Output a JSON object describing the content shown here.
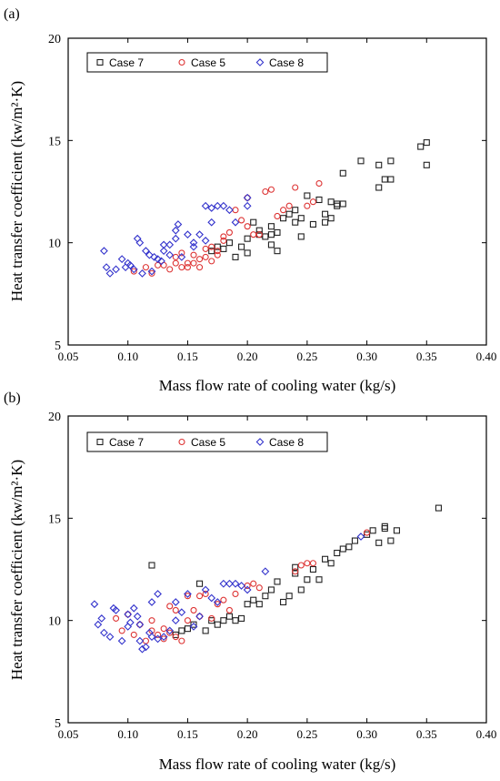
{
  "chart_data": [
    {
      "panel_label": "(a)",
      "type": "scatter",
      "xlabel": "Mass flow rate of cooling water (kg/s)",
      "ylabel": "Heat transfer coefficient (kw/m²·K)",
      "xlim": [
        0.05,
        0.4
      ],
      "ylim": [
        5,
        20
      ],
      "xticks": [
        "0.05",
        "0.10",
        "0.15",
        "0.20",
        "0.25",
        "0.30",
        "0.35",
        "0.40"
      ],
      "yticks": [
        "5",
        "10",
        "15",
        "20"
      ],
      "grid": false,
      "legend_position": "top-left",
      "series": [
        {
          "name": "Case 7",
          "color": "#222222",
          "marker": "square",
          "points": [
            [
              0.17,
              9.6
            ],
            [
              0.175,
              9.8
            ],
            [
              0.18,
              9.7
            ],
            [
              0.185,
              10.0
            ],
            [
              0.19,
              9.3
            ],
            [
              0.195,
              9.8
            ],
            [
              0.2,
              9.5
            ],
            [
              0.2,
              10.2
            ],
            [
              0.205,
              11.0
            ],
            [
              0.21,
              10.4
            ],
            [
              0.21,
              10.6
            ],
            [
              0.215,
              10.3
            ],
            [
              0.22,
              9.9
            ],
            [
              0.22,
              10.4
            ],
            [
              0.22,
              10.8
            ],
            [
              0.225,
              10.5
            ],
            [
              0.225,
              9.6
            ],
            [
              0.23,
              11.2
            ],
            [
              0.235,
              11.4
            ],
            [
              0.24,
              11.0
            ],
            [
              0.24,
              11.6
            ],
            [
              0.245,
              11.2
            ],
            [
              0.245,
              10.3
            ],
            [
              0.25,
              12.3
            ],
            [
              0.255,
              10.9
            ],
            [
              0.26,
              12.1
            ],
            [
              0.265,
              11.4
            ],
            [
              0.265,
              11.0
            ],
            [
              0.27,
              11.2
            ],
            [
              0.275,
              11.9
            ],
            [
              0.27,
              12.0
            ],
            [
              0.275,
              11.8
            ],
            [
              0.28,
              11.9
            ],
            [
              0.28,
              13.4
            ],
            [
              0.295,
              14.0
            ],
            [
              0.31,
              13.8
            ],
            [
              0.31,
              12.7
            ],
            [
              0.315,
              13.1
            ],
            [
              0.32,
              14.0
            ],
            [
              0.32,
              13.1
            ],
            [
              0.345,
              14.7
            ],
            [
              0.35,
              14.9
            ],
            [
              0.35,
              13.8
            ]
          ]
        },
        {
          "name": "Case 5",
          "color": "#dd3333",
          "marker": "circle",
          "points": [
            [
              0.105,
              8.6
            ],
            [
              0.115,
              8.8
            ],
            [
              0.12,
              8.5
            ],
            [
              0.125,
              8.9
            ],
            [
              0.13,
              8.9
            ],
            [
              0.135,
              8.7
            ],
            [
              0.14,
              9.0
            ],
            [
              0.14,
              9.3
            ],
            [
              0.145,
              8.8
            ],
            [
              0.145,
              9.5
            ],
            [
              0.15,
              9.0
            ],
            [
              0.15,
              8.8
            ],
            [
              0.155,
              9.4
            ],
            [
              0.155,
              9.0
            ],
            [
              0.16,
              9.2
            ],
            [
              0.16,
              8.8
            ],
            [
              0.165,
              9.3
            ],
            [
              0.165,
              9.7
            ],
            [
              0.17,
              9.1
            ],
            [
              0.17,
              9.8
            ],
            [
              0.175,
              9.6
            ],
            [
              0.175,
              9.4
            ],
            [
              0.18,
              10.3
            ],
            [
              0.18,
              10.1
            ],
            [
              0.185,
              10.5
            ],
            [
              0.19,
              11.6
            ],
            [
              0.195,
              11.1
            ],
            [
              0.2,
              10.8
            ],
            [
              0.2,
              12.2
            ],
            [
              0.205,
              10.4
            ],
            [
              0.21,
              10.4
            ],
            [
              0.215,
              12.5
            ],
            [
              0.22,
              12.6
            ],
            [
              0.225,
              11.3
            ],
            [
              0.23,
              11.6
            ],
            [
              0.235,
              11.8
            ],
            [
              0.24,
              12.7
            ],
            [
              0.25,
              11.8
            ],
            [
              0.255,
              12.0
            ],
            [
              0.26,
              12.9
            ]
          ]
        },
        {
          "name": "Case 8",
          "color": "#3333cc",
          "marker": "diamond",
          "points": [
            [
              0.08,
              9.6
            ],
            [
              0.082,
              8.8
            ],
            [
              0.085,
              8.5
            ],
            [
              0.09,
              8.7
            ],
            [
              0.095,
              9.2
            ],
            [
              0.098,
              8.8
            ],
            [
              0.1,
              9.0
            ],
            [
              0.102,
              8.9
            ],
            [
              0.105,
              8.7
            ],
            [
              0.108,
              10.2
            ],
            [
              0.11,
              10.0
            ],
            [
              0.112,
              8.5
            ],
            [
              0.115,
              9.6
            ],
            [
              0.118,
              9.4
            ],
            [
              0.12,
              8.6
            ],
            [
              0.122,
              9.3
            ],
            [
              0.125,
              9.2
            ],
            [
              0.128,
              9.1
            ],
            [
              0.13,
              9.6
            ],
            [
              0.13,
              9.9
            ],
            [
              0.135,
              9.9
            ],
            [
              0.135,
              9.4
            ],
            [
              0.14,
              10.6
            ],
            [
              0.14,
              10.2
            ],
            [
              0.142,
              10.9
            ],
            [
              0.145,
              9.3
            ],
            [
              0.15,
              10.4
            ],
            [
              0.155,
              9.8
            ],
            [
              0.155,
              10.0
            ],
            [
              0.16,
              10.4
            ],
            [
              0.165,
              10.1
            ],
            [
              0.165,
              11.8
            ],
            [
              0.17,
              11.0
            ],
            [
              0.17,
              11.7
            ],
            [
              0.175,
              11.8
            ],
            [
              0.18,
              11.8
            ],
            [
              0.185,
              11.6
            ],
            [
              0.19,
              11.0
            ],
            [
              0.2,
              11.8
            ],
            [
              0.2,
              12.2
            ]
          ]
        }
      ]
    },
    {
      "panel_label": "(b)",
      "type": "scatter",
      "xlabel": "Mass flow rate of cooling water (kg/s)",
      "ylabel": "Heat transfer coefficient (kw/m²·K)",
      "xlim": [
        0.05,
        0.4
      ],
      "ylim": [
        5,
        20
      ],
      "xticks": [
        "0.05",
        "0.10",
        "0.15",
        "0.20",
        "0.25",
        "0.30",
        "0.35",
        "0.40"
      ],
      "yticks": [
        "5",
        "10",
        "15",
        "20"
      ],
      "grid": false,
      "legend_position": "top-left",
      "series": [
        {
          "name": "Case 7",
          "color": "#222222",
          "marker": "square",
          "points": [
            [
              0.12,
              12.7
            ],
            [
              0.14,
              9.3
            ],
            [
              0.145,
              9.5
            ],
            [
              0.15,
              9.6
            ],
            [
              0.155,
              9.8
            ],
            [
              0.16,
              11.8
            ],
            [
              0.165,
              9.5
            ],
            [
              0.17,
              10.0
            ],
            [
              0.175,
              9.8
            ],
            [
              0.18,
              10.0
            ],
            [
              0.185,
              10.2
            ],
            [
              0.19,
              10.0
            ],
            [
              0.195,
              10.1
            ],
            [
              0.2,
              10.8
            ],
            [
              0.205,
              11.0
            ],
            [
              0.21,
              10.8
            ],
            [
              0.215,
              11.2
            ],
            [
              0.22,
              11.5
            ],
            [
              0.225,
              11.9
            ],
            [
              0.23,
              10.9
            ],
            [
              0.235,
              11.2
            ],
            [
              0.24,
              12.3
            ],
            [
              0.24,
              12.6
            ],
            [
              0.245,
              11.5
            ],
            [
              0.25,
              12.0
            ],
            [
              0.255,
              12.5
            ],
            [
              0.26,
              12.0
            ],
            [
              0.265,
              13.0
            ],
            [
              0.27,
              12.8
            ],
            [
              0.275,
              13.3
            ],
            [
              0.28,
              13.5
            ],
            [
              0.285,
              13.6
            ],
            [
              0.29,
              13.9
            ],
            [
              0.3,
              14.2
            ],
            [
              0.305,
              14.4
            ],
            [
              0.31,
              13.8
            ],
            [
              0.315,
              14.6
            ],
            [
              0.315,
              14.5
            ],
            [
              0.32,
              13.9
            ],
            [
              0.325,
              14.4
            ],
            [
              0.36,
              15.5
            ]
          ]
        },
        {
          "name": "Case 5",
          "color": "#dd3333",
          "marker": "circle",
          "points": [
            [
              0.09,
              10.1
            ],
            [
              0.095,
              9.5
            ],
            [
              0.1,
              10.3
            ],
            [
              0.105,
              9.3
            ],
            [
              0.11,
              9.8
            ],
            [
              0.115,
              9.0
            ],
            [
              0.12,
              9.5
            ],
            [
              0.12,
              10.0
            ],
            [
              0.125,
              9.3
            ],
            [
              0.13,
              9.1
            ],
            [
              0.13,
              9.6
            ],
            [
              0.135,
              9.4
            ],
            [
              0.135,
              10.7
            ],
            [
              0.14,
              10.5
            ],
            [
              0.14,
              9.2
            ],
            [
              0.145,
              9.0
            ],
            [
              0.15,
              11.2
            ],
            [
              0.15,
              10.0
            ],
            [
              0.155,
              10.5
            ],
            [
              0.16,
              11.2
            ],
            [
              0.16,
              10.2
            ],
            [
              0.165,
              11.3
            ],
            [
              0.17,
              10.1
            ],
            [
              0.175,
              10.8
            ],
            [
              0.18,
              11.0
            ],
            [
              0.185,
              10.5
            ],
            [
              0.19,
              11.3
            ],
            [
              0.2,
              11.7
            ],
            [
              0.205,
              11.8
            ],
            [
              0.21,
              11.6
            ],
            [
              0.24,
              12.4
            ],
            [
              0.245,
              12.7
            ],
            [
              0.25,
              12.8
            ],
            [
              0.255,
              12.8
            ],
            [
              0.3,
              14.3
            ]
          ]
        },
        {
          "name": "Case 8",
          "color": "#3333cc",
          "marker": "diamond",
          "points": [
            [
              0.072,
              10.8
            ],
            [
              0.075,
              9.8
            ],
            [
              0.078,
              10.1
            ],
            [
              0.08,
              9.4
            ],
            [
              0.085,
              9.2
            ],
            [
              0.088,
              10.6
            ],
            [
              0.09,
              10.5
            ],
            [
              0.095,
              9.0
            ],
            [
              0.1,
              9.7
            ],
            [
              0.1,
              10.3
            ],
            [
              0.102,
              9.9
            ],
            [
              0.105,
              10.6
            ],
            [
              0.108,
              10.2
            ],
            [
              0.11,
              9.8
            ],
            [
              0.11,
              9.0
            ],
            [
              0.112,
              8.6
            ],
            [
              0.115,
              8.7
            ],
            [
              0.118,
              9.4
            ],
            [
              0.12,
              10.9
            ],
            [
              0.12,
              9.2
            ],
            [
              0.125,
              11.3
            ],
            [
              0.125,
              9.1
            ],
            [
              0.13,
              9.2
            ],
            [
              0.135,
              9.5
            ],
            [
              0.14,
              10.9
            ],
            [
              0.14,
              10.0
            ],
            [
              0.145,
              10.4
            ],
            [
              0.15,
              11.3
            ],
            [
              0.155,
              9.7
            ],
            [
              0.16,
              10.2
            ],
            [
              0.165,
              11.5
            ],
            [
              0.17,
              11.1
            ],
            [
              0.175,
              10.9
            ],
            [
              0.18,
              11.8
            ],
            [
              0.185,
              11.8
            ],
            [
              0.19,
              11.8
            ],
            [
              0.195,
              11.7
            ],
            [
              0.2,
              11.5
            ],
            [
              0.215,
              12.4
            ],
            [
              0.295,
              14.1
            ]
          ]
        }
      ]
    }
  ]
}
